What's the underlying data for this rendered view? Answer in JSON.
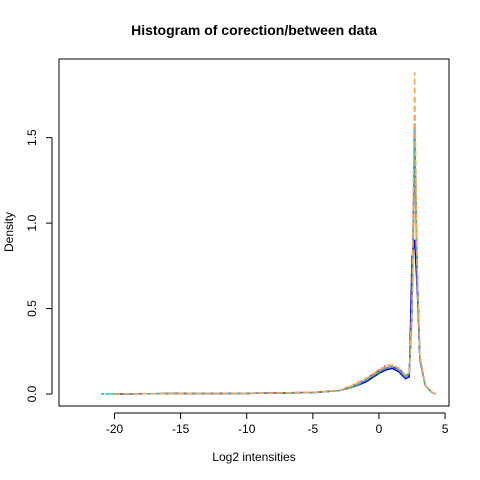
{
  "chart_data": {
    "type": "line",
    "title": "Histogram of corection/between data",
    "xlabel": "Log2 intensities",
    "ylabel": "Density",
    "xlim": [
      -24.2,
      5.3
    ],
    "ylim": [
      -0.07,
      1.96
    ],
    "xticks": [
      -20,
      -15,
      -10,
      -5,
      0,
      5
    ],
    "xtick_labels": [
      "-20",
      "-15",
      "-10",
      "-5",
      "0",
      "5"
    ],
    "yticks": [
      0.0,
      0.5,
      1.0,
      1.5
    ],
    "ytick_labels": [
      "0.0",
      "0.5",
      "1.0",
      "1.5"
    ],
    "grid": false,
    "legend": "none",
    "series": [
      {
        "color": "#000000",
        "dash": "",
        "x": [
          -20,
          -15,
          -10,
          -5,
          -3,
          -2,
          -1,
          0,
          0.5,
          1,
          1.5,
          2,
          2.3,
          2.5,
          2.7,
          2.9,
          3.1,
          3.5,
          4,
          4.3
        ],
        "y": [
          0,
          0.003,
          0.004,
          0.008,
          0.02,
          0.04,
          0.08,
          0.13,
          0.15,
          0.16,
          0.14,
          0.1,
          0.12,
          0.55,
          1.5,
          0.7,
          0.2,
          0.05,
          0.01,
          0
        ]
      },
      {
        "color": "#0000ff",
        "dash": "",
        "x": [
          -20,
          -15,
          -10,
          -5,
          -3,
          -2,
          -1,
          0,
          0.5,
          1,
          1.5,
          2,
          2.3,
          2.5,
          2.7,
          2.9,
          3.1,
          3.5,
          4,
          4.3
        ],
        "y": [
          0,
          0.003,
          0.004,
          0.008,
          0.02,
          0.04,
          0.07,
          0.12,
          0.14,
          0.15,
          0.13,
          0.09,
          0.1,
          0.8,
          0.9,
          0.6,
          0.2,
          0.05,
          0.01,
          0
        ]
      },
      {
        "color": "#9400d3",
        "dash": "",
        "x": [
          -20,
          -15,
          -10,
          -5,
          -3,
          -2,
          -1,
          0,
          0.5,
          1,
          1.5,
          2,
          2.3,
          2.5,
          2.7,
          2.9,
          3.1,
          3.5,
          4,
          4.3
        ],
        "y": [
          0,
          0.003,
          0.005,
          0.009,
          0.02,
          0.04,
          0.08,
          0.13,
          0.15,
          0.16,
          0.14,
          0.1,
          0.12,
          0.5,
          1.58,
          0.65,
          0.2,
          0.05,
          0.01,
          0
        ]
      },
      {
        "color": "#ff0000",
        "dash": "4,3",
        "x": [
          -20,
          -15,
          -10,
          -5,
          -3,
          -2,
          -1,
          0,
          0.5,
          1,
          1.5,
          2,
          2.3,
          2.5,
          2.7,
          2.9,
          3.1,
          3.5,
          4,
          4.3
        ],
        "y": [
          0,
          0.003,
          0.004,
          0.01,
          0.02,
          0.05,
          0.09,
          0.14,
          0.16,
          0.17,
          0.15,
          0.11,
          0.12,
          0.45,
          1.42,
          0.72,
          0.22,
          0.05,
          0.01,
          0
        ]
      },
      {
        "color": "#008b00",
        "dash": "4,3",
        "x": [
          -20,
          -15,
          -10,
          -5,
          -3,
          -2,
          -1,
          0,
          0.5,
          1,
          1.5,
          2,
          2.3,
          2.5,
          2.7,
          2.9,
          3.1,
          3.5,
          4,
          4.3
        ],
        "y": [
          0,
          0.003,
          0.004,
          0.008,
          0.02,
          0.04,
          0.08,
          0.12,
          0.15,
          0.16,
          0.14,
          0.1,
          0.11,
          0.5,
          1.38,
          0.7,
          0.21,
          0.05,
          0.01,
          0
        ]
      },
      {
        "color": "#00bfff",
        "dash": "2,2",
        "x": [
          -21,
          -20,
          -15,
          -10,
          -5,
          -3,
          -2,
          -1,
          0,
          0.5,
          1,
          1.5,
          2,
          2.3,
          2.5,
          2.7,
          2.9,
          3.1,
          3.5,
          4,
          4.3
        ],
        "y": [
          0,
          0.001,
          0.003,
          0.004,
          0.008,
          0.02,
          0.04,
          0.08,
          0.13,
          0.15,
          0.16,
          0.14,
          0.1,
          0.12,
          0.5,
          1.45,
          0.68,
          0.2,
          0.05,
          0.01,
          0
        ]
      },
      {
        "color": "#ff69b4",
        "dash": "2,2",
        "x": [
          -20,
          -15,
          -10,
          -5,
          -3,
          -2,
          -1,
          0,
          0.5,
          1,
          1.5,
          2,
          2.3,
          2.5,
          2.7,
          2.9,
          3.1,
          3.5,
          4,
          4.3
        ],
        "y": [
          0,
          0.003,
          0.004,
          0.01,
          0.02,
          0.05,
          0.09,
          0.14,
          0.17,
          0.17,
          0.15,
          0.11,
          0.12,
          0.52,
          1.48,
          0.7,
          0.22,
          0.05,
          0.01,
          0
        ]
      },
      {
        "color": "#cdcd00",
        "dash": "6,3",
        "x": [
          -20,
          -15,
          -10,
          -5,
          -3,
          -2,
          -1,
          0,
          0.5,
          1,
          1.5,
          2,
          2.3,
          2.5,
          2.7,
          2.9,
          3.1,
          3.5,
          4,
          4.3
        ],
        "y": [
          0,
          0.003,
          0.004,
          0.009,
          0.02,
          0.05,
          0.09,
          0.14,
          0.16,
          0.17,
          0.15,
          0.11,
          0.12,
          0.48,
          1.4,
          0.7,
          0.21,
          0.05,
          0.01,
          0
        ]
      },
      {
        "color": "#a0a0a0",
        "dash": "6,3",
        "x": [
          -20,
          -15,
          -10,
          -5,
          -3,
          -2,
          -1,
          0,
          0.5,
          1,
          1.5,
          2,
          2.3,
          2.5,
          2.7,
          2.9,
          3.1,
          3.5,
          4,
          4.3
        ],
        "y": [
          0,
          0.003,
          0.004,
          0.008,
          0.02,
          0.04,
          0.08,
          0.13,
          0.15,
          0.16,
          0.14,
          0.1,
          0.11,
          0.5,
          1.35,
          0.68,
          0.2,
          0.05,
          0.01,
          0
        ]
      },
      {
        "color": "#20b2aa",
        "dash": "3,2",
        "x": [
          -21,
          -20,
          -15,
          -10,
          -5,
          -3,
          -2,
          -1,
          0,
          0.5,
          1,
          1.5,
          2,
          2.3,
          2.5,
          2.7,
          2.9,
          3.1,
          3.5,
          4,
          4.3
        ],
        "y": [
          0,
          0.001,
          0.003,
          0.004,
          0.008,
          0.02,
          0.04,
          0.08,
          0.13,
          0.15,
          0.16,
          0.14,
          0.1,
          0.12,
          0.5,
          1.55,
          0.7,
          0.21,
          0.05,
          0.01,
          0
        ]
      },
      {
        "color": "#ffa54f",
        "dash": "6,3",
        "x": [
          -20,
          -15,
          -10,
          -5,
          -3,
          -2,
          -1,
          0,
          0.5,
          1,
          1.5,
          2,
          2.3,
          2.5,
          2.7,
          2.9,
          3.1,
          3.5,
          4,
          4.3
        ],
        "y": [
          0,
          0.003,
          0.004,
          0.009,
          0.02,
          0.05,
          0.09,
          0.14,
          0.16,
          0.17,
          0.15,
          0.11,
          0.12,
          0.55,
          1.88,
          0.72,
          0.22,
          0.05,
          0.01,
          0
        ]
      }
    ]
  }
}
